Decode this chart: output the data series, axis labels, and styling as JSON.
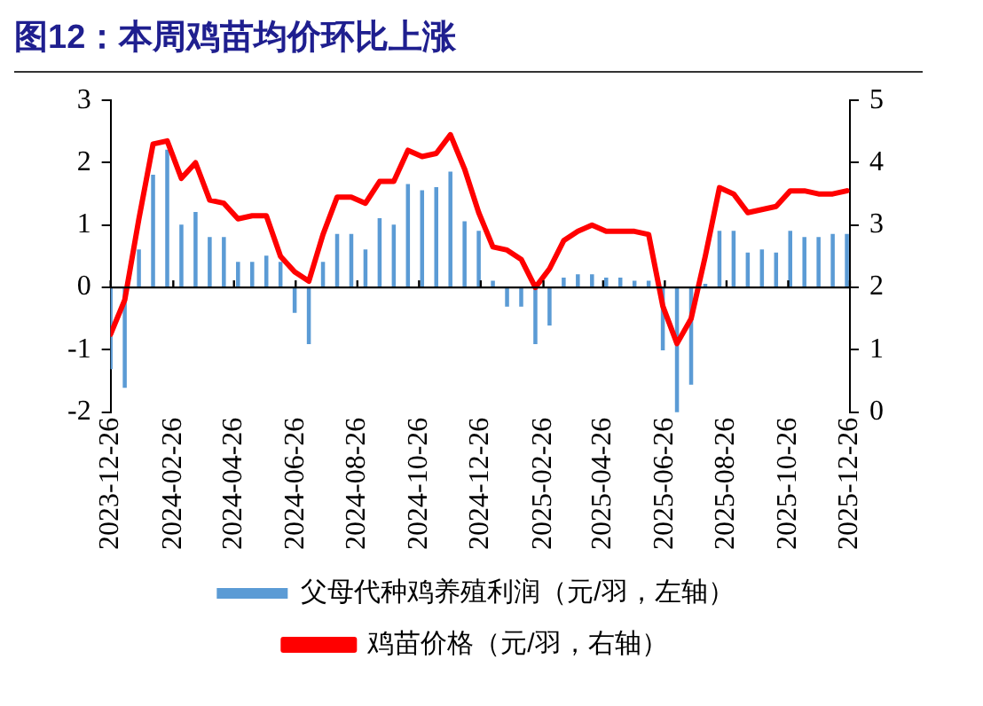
{
  "chart_data": {
    "type": "bar",
    "title": "图12：本周鸡苗均价环比上涨",
    "x": [
      "2023-12-26",
      "2024-01-09",
      "2024-01-23",
      "2024-02-06",
      "2024-02-20",
      "2024-03-05",
      "2024-03-19",
      "2024-04-02",
      "2024-04-16",
      "2024-04-30",
      "2024-05-14",
      "2024-05-28",
      "2024-06-11",
      "2024-06-25",
      "2024-07-09",
      "2024-07-23",
      "2024-08-06",
      "2024-08-20",
      "2024-09-03",
      "2024-09-17",
      "2024-10-01",
      "2024-10-15",
      "2024-10-29",
      "2024-11-12",
      "2024-11-26",
      "2024-12-10",
      "2024-12-24",
      "2025-01-07",
      "2025-01-21",
      "2025-02-04",
      "2025-02-18",
      "2025-03-04",
      "2025-03-18",
      "2025-04-01",
      "2025-04-15",
      "2025-04-29",
      "2025-05-13",
      "2025-05-27",
      "2025-06-10",
      "2025-06-24",
      "2025-07-08",
      "2025-07-22",
      "2025-08-05",
      "2025-08-19",
      "2025-09-02",
      "2025-09-16",
      "2025-09-30",
      "2025-10-14",
      "2025-10-28",
      "2025-11-11",
      "2025-11-25",
      "2025-12-09",
      "2025-12-23"
    ],
    "series": [
      {
        "name": "父母代种鸡养殖利润（元/羽，左轴）",
        "color": "#5b9bd5",
        "values": [
          -1.3,
          -1.6,
          0.6,
          1.8,
          2.2,
          1.0,
          1.2,
          0.8,
          0.8,
          0.4,
          0.4,
          0.5,
          0.4,
          -0.4,
          -0.9,
          0.4,
          0.85,
          0.85,
          0.6,
          1.1,
          1.0,
          1.65,
          1.55,
          1.6,
          1.85,
          1.05,
          0.9,
          0.1,
          -0.3,
          -0.3,
          -0.9,
          -0.6,
          0.15,
          0.2,
          0.2,
          0.15,
          0.15,
          0.1,
          0.1,
          -1.0,
          -2.0,
          -1.55,
          0.05,
          0.9,
          0.9,
          0.55,
          0.6,
          0.55,
          0.9,
          0.8,
          0.8,
          0.85,
          0.85
        ]
      },
      {
        "name": "鸡苗价格（元/羽，右轴）",
        "type": "line",
        "axis": "y2",
        "color": "#ff0000",
        "values": [
          1.25,
          1.8,
          3.1,
          4.3,
          4.35,
          3.75,
          4.0,
          3.4,
          3.35,
          3.1,
          3.15,
          3.15,
          2.5,
          2.25,
          2.1,
          2.85,
          3.45,
          3.45,
          3.35,
          3.7,
          3.7,
          4.2,
          4.1,
          4.15,
          4.45,
          3.9,
          3.2,
          2.65,
          2.6,
          2.45,
          2.0,
          2.3,
          2.75,
          2.9,
          3.0,
          2.9,
          2.9,
          2.9,
          2.85,
          1.7,
          1.1,
          1.5,
          2.5,
          3.6,
          3.5,
          3.2,
          3.25,
          3.3,
          3.55,
          3.55,
          3.5,
          3.5,
          3.55
        ]
      }
    ],
    "xlim": [
      "2023-12-26",
      "2025-12-26"
    ],
    "xticks": [
      {
        "value": "2023-12-26",
        "label": "2023-12-26"
      },
      {
        "value": "2024-02-26",
        "label": "2024-02-26"
      },
      {
        "value": "2024-04-26",
        "label": "2024-04-26"
      },
      {
        "value": "2024-06-26",
        "label": "2024-06-26"
      },
      {
        "value": "2024-08-26",
        "label": "2024-08-26"
      },
      {
        "value": "2024-10-26",
        "label": "2024-10-26"
      },
      {
        "value": "2024-12-26",
        "label": "2024-12-26"
      },
      {
        "value": "2025-02-26",
        "label": "2025-02-26"
      },
      {
        "value": "2025-04-26",
        "label": "2025-04-26"
      },
      {
        "value": "2025-06-26",
        "label": "2025-06-26"
      },
      {
        "value": "2025-08-26",
        "label": "2025-08-26"
      },
      {
        "value": "2025-10-26",
        "label": "2025-10-26"
      },
      {
        "value": "2025-12-26",
        "label": "2025-12-26"
      }
    ],
    "ylim": [
      -2,
      3
    ],
    "yticks": [
      -2,
      -1,
      0,
      1,
      2,
      3
    ],
    "y2lim": [
      0,
      5
    ],
    "y2ticks": [
      0,
      1,
      2,
      3,
      4,
      5
    ],
    "legend": "bottom"
  }
}
